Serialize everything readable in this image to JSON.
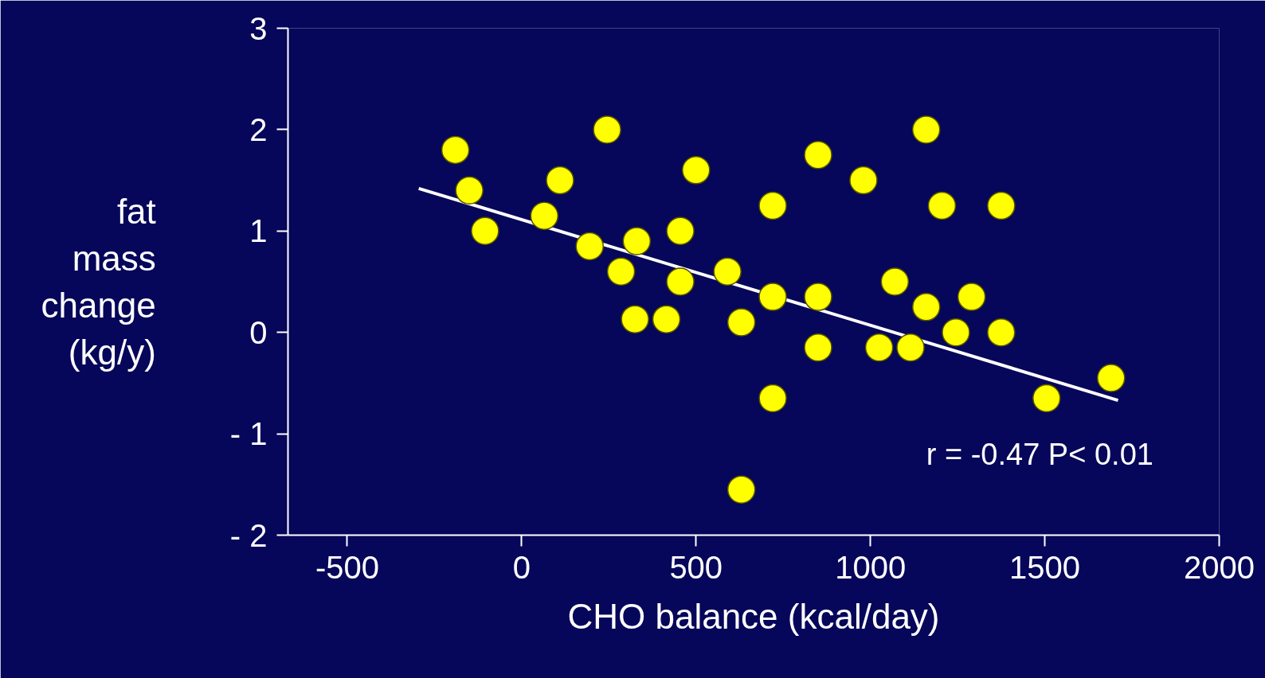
{
  "chart_data": {
    "type": "scatter",
    "xlabel": "CHO balance (kcal/day)",
    "ylabel": "fat\nmass\nchange\n(kg/y)",
    "xlim": [
      -670,
      2000
    ],
    "ylim": [
      -2,
      3
    ],
    "xticks": [
      -500,
      0,
      500,
      1000,
      1500,
      2000
    ],
    "yticks": [
      {
        "value": -2,
        "label": "- 2"
      },
      {
        "value": -1,
        "label": "- 1"
      },
      0,
      1,
      2,
      3
    ],
    "grid": false,
    "marker": "circle",
    "annotations": [
      "r = -0.47    P< 0.01"
    ],
    "series": [
      {
        "color": "#ffff00",
        "x": [
          -190,
          -150,
          -105,
          65,
          110,
          245,
          195,
          330,
          285,
          325,
          415,
          455,
          455,
          500,
          590,
          630,
          630,
          720,
          720,
          720,
          850,
          850,
          850,
          980,
          1025,
          1070,
          1115,
          1160,
          1160,
          1205,
          1245,
          1290,
          1375,
          1375,
          1505,
          1690
        ],
        "values": [
          1.8,
          1.4,
          1.0,
          1.15,
          1.5,
          2.0,
          0.85,
          0.9,
          0.6,
          0.13,
          0.13,
          1.0,
          0.5,
          1.6,
          0.6,
          0.1,
          -1.55,
          1.25,
          0.35,
          -0.65,
          1.75,
          0.35,
          -0.15,
          1.5,
          -0.15,
          0.5,
          -0.15,
          2.0,
          0.25,
          1.25,
          0.0,
          0.35,
          1.25,
          0.0,
          -0.65,
          -0.45
        ]
      },
      {
        "type": "line",
        "marker": "none",
        "color": "#ffffff",
        "x": [
          -295,
          1710
        ],
        "values": [
          1.42,
          -0.67
        ]
      }
    ]
  }
}
